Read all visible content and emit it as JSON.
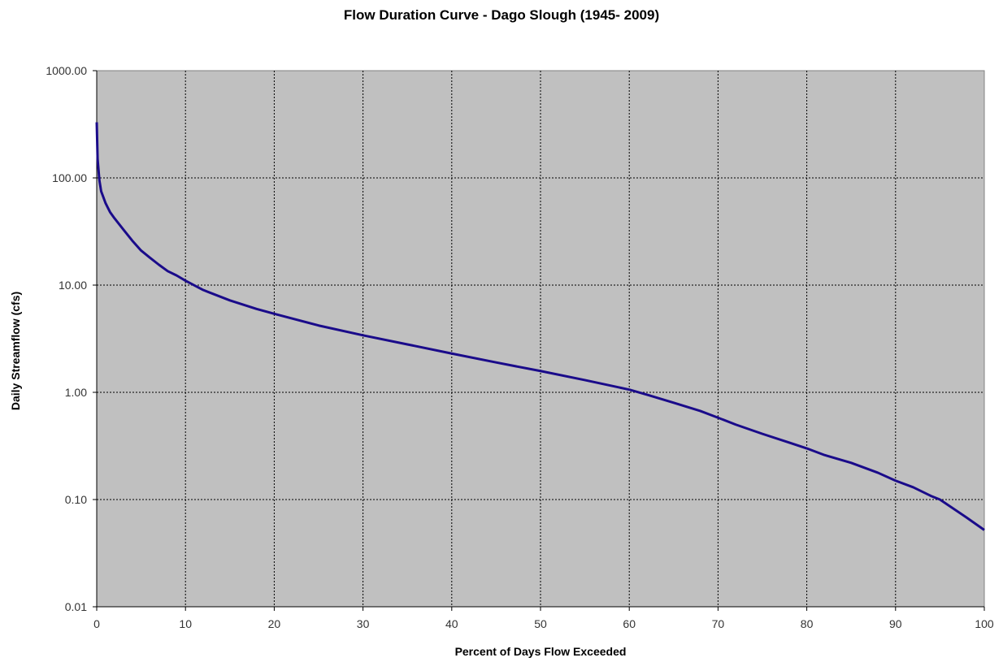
{
  "chart_data": {
    "type": "line",
    "title": "Flow Duration Curve - Dago Slough (1945- 2009)",
    "xlabel": "Percent of Days Flow Exceeded",
    "ylabel": "Daily Streamflow (cfs)",
    "xlim": [
      0,
      100
    ],
    "ylim": [
      0.01,
      1000
    ],
    "y_scale": "log",
    "grid": true,
    "x_ticks": [
      "0",
      "10",
      "20",
      "30",
      "40",
      "50",
      "60",
      "70",
      "80",
      "90",
      "100"
    ],
    "y_ticks": [
      "1000.00",
      "100.00",
      "10.00",
      "1.00",
      "0.10",
      "0.01"
    ],
    "colors": {
      "line": "#1a0b8a",
      "plot_bg": "#c0c0c0",
      "grid": "#000000"
    },
    "series": [
      {
        "x": [
          0,
          0.1,
          0.3,
          0.5,
          1,
          1.5,
          2,
          3,
          4,
          5,
          6,
          7,
          8,
          9,
          10,
          12,
          15,
          18,
          20,
          25,
          30,
          35,
          40,
          45,
          50,
          55,
          60,
          62,
          65,
          68,
          70,
          72,
          75,
          78,
          80,
          82,
          85,
          88,
          90,
          92,
          94,
          95,
          96,
          98,
          100
        ],
        "y": [
          330,
          150,
          95,
          75,
          58,
          48,
          42,
          33,
          26,
          21,
          18,
          15.5,
          13.5,
          12.3,
          11,
          9,
          7.2,
          6,
          5.4,
          4.2,
          3.4,
          2.8,
          2.3,
          1.9,
          1.58,
          1.3,
          1.06,
          0.95,
          0.8,
          0.67,
          0.58,
          0.5,
          0.41,
          0.34,
          0.3,
          0.26,
          0.22,
          0.178,
          0.15,
          0.13,
          0.108,
          0.1,
          0.088,
          0.068,
          0.052
        ]
      }
    ]
  }
}
